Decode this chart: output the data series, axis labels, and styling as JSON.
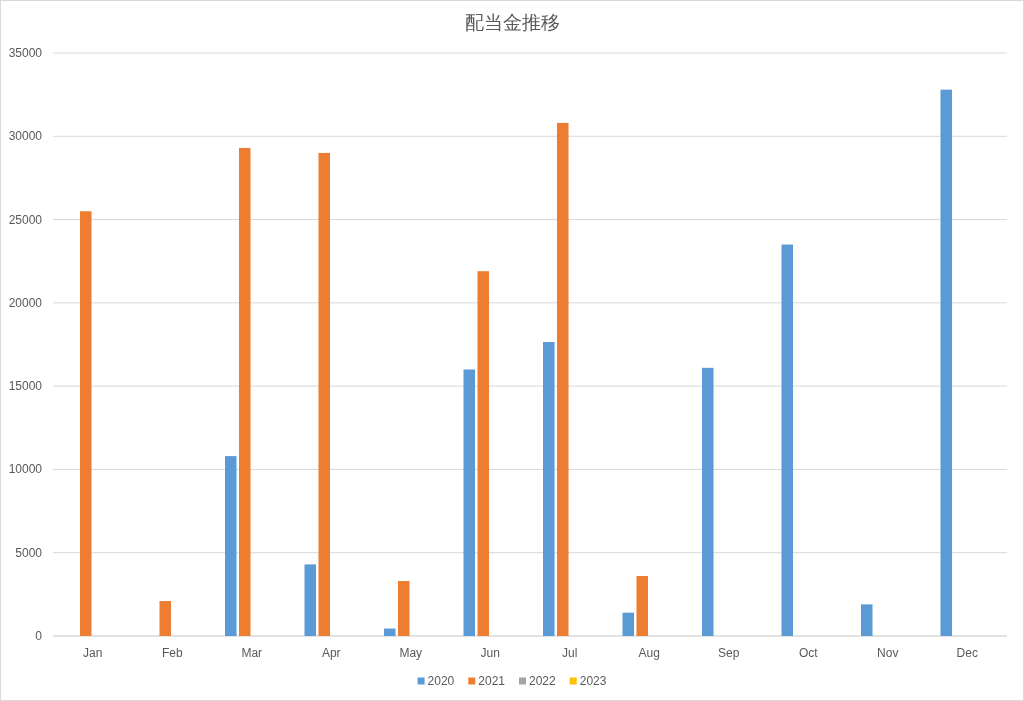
{
  "chart_data": {
    "type": "bar",
    "title": "配当金推移",
    "categories": [
      "Jan",
      "Feb",
      "Mar",
      "Apr",
      "May",
      "Jun",
      "Jul",
      "Aug",
      "Sep",
      "Oct",
      "Nov",
      "Dec"
    ],
    "series": [
      {
        "name": "2020",
        "color": "#5b9bd5",
        "values": [
          null,
          null,
          10800,
          4300,
          450,
          16000,
          17650,
          1400,
          16100,
          23500,
          1900,
          32800
        ]
      },
      {
        "name": "2021",
        "color": "#ed7d31",
        "values": [
          25500,
          2100,
          29300,
          29000,
          3300,
          21900,
          30800,
          3600,
          null,
          null,
          null,
          null
        ]
      },
      {
        "name": "2022",
        "color": "#a5a5a5",
        "values": [
          null,
          null,
          null,
          null,
          null,
          null,
          null,
          null,
          null,
          null,
          null,
          null
        ]
      },
      {
        "name": "2023",
        "color": "#ffc000",
        "values": [
          null,
          null,
          null,
          null,
          null,
          null,
          null,
          null,
          null,
          null,
          null,
          null
        ]
      }
    ],
    "ylim": [
      0,
      35000
    ],
    "yticks": [
      0,
      5000,
      10000,
      15000,
      20000,
      25000,
      30000,
      35000
    ],
    "grid": "y",
    "legend": "bottom"
  }
}
